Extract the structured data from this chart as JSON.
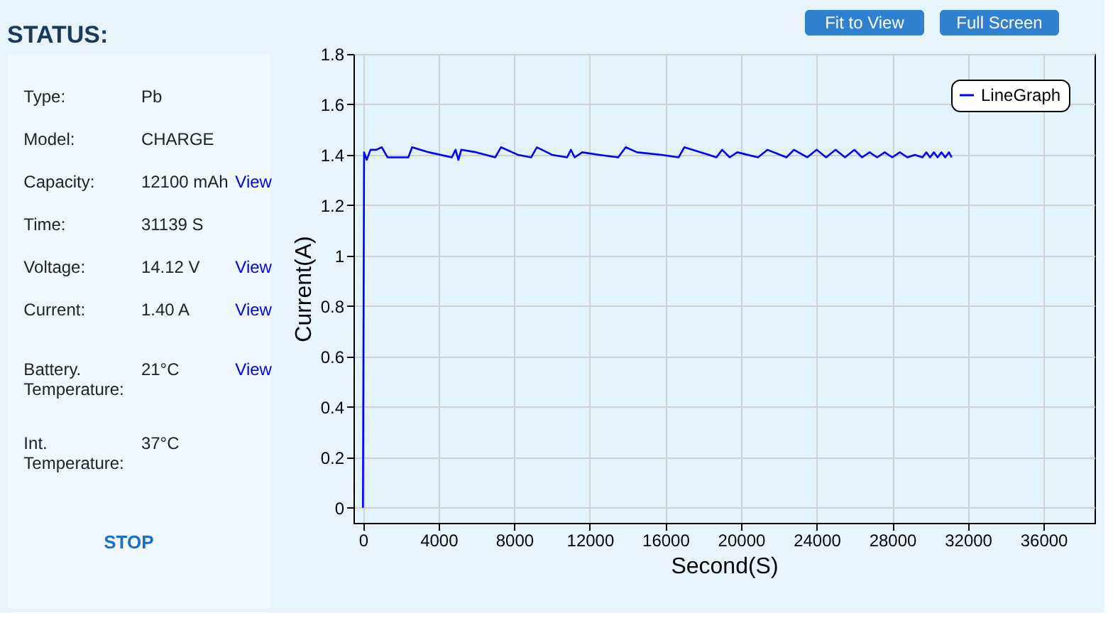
{
  "chart_data": [
    {
      "type": "other",
      "title": "STATUS:",
      "annotations": [
        "Type:",
        "Pb",
        "Model:",
        "CHARGE",
        "Capacity:",
        "12100 mAh",
        "View",
        "Time:",
        "31139 S",
        "Voltage:",
        "14.12 V",
        "View",
        "Current:",
        "1.40 A",
        "View",
        "Battery.\nTemperature:",
        "21°C",
        "View",
        "Int.\nTemperature:",
        "37°C",
        "STOP"
      ]
    },
    {
      "type": "line",
      "xlabel": "Second(S)",
      "ylabel": "Current(A)",
      "annotations": [
        "Fit to View",
        "Full Screen"
      ],
      "xlim": [
        -500,
        38700
      ],
      "xticks": [
        0,
        4000,
        8000,
        12000,
        16000,
        20000,
        24000,
        28000,
        32000,
        36000
      ],
      "ylim": [
        -0.06,
        1.8
      ],
      "yticks": [
        0,
        0.2,
        0.4,
        0.6,
        0.8,
        1,
        1.2,
        1.4,
        1.6,
        1.8
      ],
      "grid": true,
      "legend": "top right",
      "line_style": "solid",
      "marker": "none",
      "series": [
        {
          "name": "LineGraph",
          "color": "#0000ff",
          "x": [
            0,
            60,
            200,
            400,
            700,
            1000,
            1300,
            2400,
            2600,
            3500,
            4700,
            4900,
            5050,
            5200,
            6000,
            7000,
            7300,
            8200,
            8900,
            9200,
            10000,
            10800,
            11000,
            11200,
            11600,
            12500,
            13500,
            13900,
            14500,
            15800,
            16700,
            17000,
            18300,
            18700,
            19000,
            19400,
            19800,
            20900,
            21400,
            22400,
            22800,
            23500,
            24000,
            24500,
            25000,
            25500,
            26000,
            26400,
            26800,
            27200,
            27600,
            28000,
            28400,
            28800,
            29200,
            29600,
            29800,
            30000,
            30200,
            30400,
            30600,
            30800,
            31000,
            31139
          ],
          "values": [
            0,
            1.41,
            1.38,
            1.42,
            1.42,
            1.43,
            1.39,
            1.39,
            1.43,
            1.41,
            1.39,
            1.42,
            1.38,
            1.42,
            1.41,
            1.39,
            1.43,
            1.4,
            1.39,
            1.43,
            1.4,
            1.39,
            1.42,
            1.39,
            1.41,
            1.4,
            1.39,
            1.43,
            1.41,
            1.4,
            1.39,
            1.43,
            1.4,
            1.39,
            1.42,
            1.39,
            1.41,
            1.39,
            1.42,
            1.39,
            1.42,
            1.39,
            1.42,
            1.39,
            1.42,
            1.39,
            1.42,
            1.39,
            1.41,
            1.39,
            1.41,
            1.39,
            1.41,
            1.39,
            1.4,
            1.39,
            1.41,
            1.39,
            1.41,
            1.39,
            1.41,
            1.39,
            1.41,
            1.39
          ]
        }
      ]
    }
  ]
}
